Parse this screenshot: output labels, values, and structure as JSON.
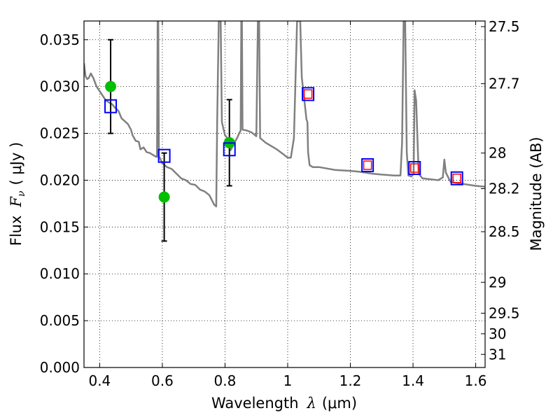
{
  "chart_data": {
    "type": "line",
    "xlabel": "Wavelength",
    "xlabel_symbol": "λ",
    "xlabel_unit": "(μm)",
    "ylabel": "Flux",
    "ylabel_symbol": "F",
    "ylabel_subscript": "ν",
    "ylabel_unit": "( μJy )",
    "y2label": "Magnitude (AB)",
    "xlim": [
      0.35,
      1.63
    ],
    "ylim": [
      0.0,
      0.037
    ],
    "grid": true,
    "x_ticks": [
      {
        "value": 0.4,
        "label": "0.4"
      },
      {
        "value": 0.6,
        "label": "0.6"
      },
      {
        "value": 0.8,
        "label": "0.8"
      },
      {
        "value": 1.0,
        "label": "1"
      },
      {
        "value": 1.2,
        "label": "1.2"
      },
      {
        "value": 1.4,
        "label": "1.4"
      },
      {
        "value": 1.6,
        "label": "1.6"
      }
    ],
    "y_ticks": [
      {
        "value": 0.0,
        "label": "0.000"
      },
      {
        "value": 0.005,
        "label": "0.005"
      },
      {
        "value": 0.01,
        "label": "0.010"
      },
      {
        "value": 0.015,
        "label": "0.015"
      },
      {
        "value": 0.02,
        "label": "0.020"
      },
      {
        "value": 0.025,
        "label": "0.025"
      },
      {
        "value": 0.03,
        "label": "0.030"
      },
      {
        "value": 0.035,
        "label": "0.035"
      }
    ],
    "y2_ticks": [
      {
        "flux": 0.0364,
        "label": "27.5"
      },
      {
        "flux": 0.0303,
        "label": "27.7"
      },
      {
        "flux": 0.0229,
        "label": "28"
      },
      {
        "flux": 0.0191,
        "label": "28.2"
      },
      {
        "flux": 0.0145,
        "label": "28.5"
      },
      {
        "flux": 0.0091,
        "label": "29"
      },
      {
        "flux": 0.0058,
        "label": "29.5"
      },
      {
        "flux": 0.0036,
        "label": "30"
      },
      {
        "flux": 0.0014,
        "label": "31"
      }
    ],
    "series": [
      {
        "kind": "model_spectrum",
        "color": "#808080",
        "points": [
          [
            0.35,
            0.0325
          ],
          [
            0.355,
            0.0311
          ],
          [
            0.36,
            0.0308
          ],
          [
            0.365,
            0.0309
          ],
          [
            0.372,
            0.0314
          ],
          [
            0.38,
            0.0309
          ],
          [
            0.39,
            0.03
          ],
          [
            0.4,
            0.0295
          ],
          [
            0.41,
            0.029
          ],
          [
            0.42,
            0.0285
          ],
          [
            0.43,
            0.0283
          ],
          [
            0.44,
            0.0281
          ],
          [
            0.45,
            0.0277
          ],
          [
            0.46,
            0.0274
          ],
          [
            0.47,
            0.0266
          ],
          [
            0.48,
            0.0263
          ],
          [
            0.49,
            0.026
          ],
          [
            0.5,
            0.0254
          ],
          [
            0.505,
            0.0248
          ],
          [
            0.515,
            0.0242
          ],
          [
            0.525,
            0.0241
          ],
          [
            0.53,
            0.0233
          ],
          [
            0.54,
            0.0235
          ],
          [
            0.55,
            0.023
          ],
          [
            0.56,
            0.0229
          ],
          [
            0.57,
            0.0227
          ],
          [
            0.58,
            0.0225
          ],
          [
            0.583,
            0.0225
          ],
          [
            0.585,
            0.037
          ],
          [
            0.587,
            0.037
          ],
          [
            0.589,
            0.0226
          ],
          [
            0.6,
            0.0218
          ],
          [
            0.615,
            0.0214
          ],
          [
            0.63,
            0.0212
          ],
          [
            0.645,
            0.0207
          ],
          [
            0.66,
            0.0202
          ],
          [
            0.675,
            0.02
          ],
          [
            0.69,
            0.0196
          ],
          [
            0.705,
            0.0195
          ],
          [
            0.72,
            0.019
          ],
          [
            0.735,
            0.0188
          ],
          [
            0.75,
            0.0184
          ],
          [
            0.765,
            0.0174
          ],
          [
            0.772,
            0.0172
          ],
          [
            0.775,
            0.0265
          ],
          [
            0.78,
            0.037
          ],
          [
            0.786,
            0.037
          ],
          [
            0.79,
            0.0262
          ],
          [
            0.8,
            0.0248
          ],
          [
            0.81,
            0.0244
          ],
          [
            0.818,
            0.0232
          ],
          [
            0.83,
            0.024
          ],
          [
            0.84,
            0.0246
          ],
          [
            0.845,
            0.025
          ],
          [
            0.85,
            0.0253
          ],
          [
            0.852,
            0.037
          ],
          [
            0.854,
            0.037
          ],
          [
            0.856,
            0.0254
          ],
          [
            0.87,
            0.0253
          ],
          [
            0.885,
            0.0251
          ],
          [
            0.9,
            0.0247
          ],
          [
            0.905,
            0.037
          ],
          [
            0.909,
            0.037
          ],
          [
            0.912,
            0.0245
          ],
          [
            0.93,
            0.024
          ],
          [
            0.95,
            0.0236
          ],
          [
            0.965,
            0.0233
          ],
          [
            0.985,
            0.0228
          ],
          [
            1.0,
            0.0224
          ],
          [
            1.01,
            0.0224
          ],
          [
            1.02,
            0.0245
          ],
          [
            1.03,
            0.037
          ],
          [
            1.04,
            0.037
          ],
          [
            1.045,
            0.031
          ],
          [
            1.055,
            0.028
          ],
          [
            1.06,
            0.0265
          ],
          [
            1.063,
            0.0262
          ],
          [
            1.065,
            0.023
          ],
          [
            1.07,
            0.0216
          ],
          [
            1.08,
            0.0214
          ],
          [
            1.1,
            0.0214
          ],
          [
            1.15,
            0.0211
          ],
          [
            1.2,
            0.021
          ],
          [
            1.23,
            0.0209
          ],
          [
            1.27,
            0.0207
          ],
          [
            1.3,
            0.0206
          ],
          [
            1.34,
            0.0205
          ],
          [
            1.36,
            0.0205
          ],
          [
            1.365,
            0.024
          ],
          [
            1.37,
            0.037
          ],
          [
            1.375,
            0.037
          ],
          [
            1.38,
            0.023
          ],
          [
            1.385,
            0.0205
          ],
          [
            1.395,
            0.0204
          ],
          [
            1.402,
            0.0207
          ],
          [
            1.405,
            0.0296
          ],
          [
            1.41,
            0.0285
          ],
          [
            1.418,
            0.0207
          ],
          [
            1.43,
            0.0202
          ],
          [
            1.48,
            0.02
          ],
          [
            1.495,
            0.0203
          ],
          [
            1.5,
            0.0222
          ],
          [
            1.505,
            0.0208
          ],
          [
            1.52,
            0.0198
          ],
          [
            1.56,
            0.0196
          ],
          [
            1.6,
            0.0194
          ],
          [
            1.63,
            0.0193
          ]
        ]
      },
      {
        "kind": "observed",
        "marker": "circle",
        "color": "#00bf00",
        "points": [
          {
            "x": 0.435,
            "y": 0.03,
            "err": 0.005
          },
          {
            "x": 0.606,
            "y": 0.0182,
            "err": 0.0047
          },
          {
            "x": 0.814,
            "y": 0.024,
            "err": 0.0046
          }
        ]
      },
      {
        "kind": "model_band",
        "marker": "square",
        "color": "#0000ff",
        "points": [
          {
            "x": 0.435,
            "y": 0.0279
          },
          {
            "x": 0.606,
            "y": 0.0226
          },
          {
            "x": 0.814,
            "y": 0.0233
          },
          {
            "x": 1.065,
            "y": 0.0292
          },
          {
            "x": 1.255,
            "y": 0.0216
          },
          {
            "x": 1.405,
            "y": 0.0213
          },
          {
            "x": 1.54,
            "y": 0.0202
          }
        ]
      },
      {
        "kind": "model_band_inner",
        "marker": "square",
        "color": "#ff0000",
        "points": [
          {
            "x": 1.065,
            "y": 0.0292
          },
          {
            "x": 1.255,
            "y": 0.0216
          },
          {
            "x": 1.405,
            "y": 0.0213
          },
          {
            "x": 1.54,
            "y": 0.0202
          }
        ]
      }
    ]
  }
}
